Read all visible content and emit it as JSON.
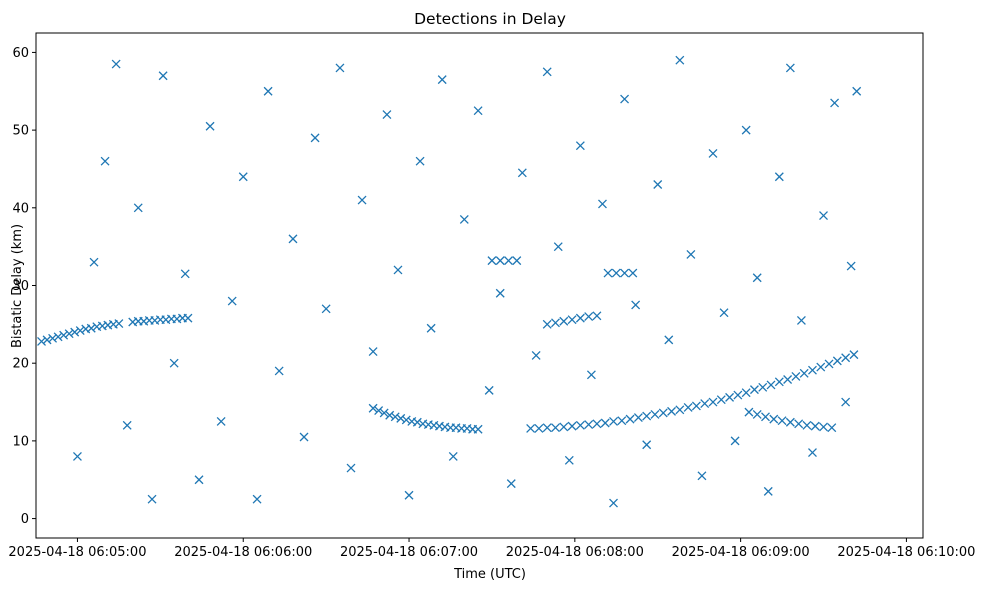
{
  "chart_data": {
    "type": "scatter",
    "title": "Detections in Delay",
    "xlabel": "Time (UTC)",
    "ylabel": "Bistatic Delay (km)",
    "x_axis_type": "datetime",
    "xlim": [
      "2025-04-18 06:04:45",
      "2025-04-18 06:10:06"
    ],
    "ylim": [
      -2.5,
      62.5
    ],
    "x_ticks": [
      "2025-04-18 06:05:00",
      "2025-04-18 06:06:00",
      "2025-04-18 06:07:00",
      "2025-04-18 06:08:00",
      "2025-04-18 06:09:00",
      "2025-04-18 06:10:00"
    ],
    "x_tick_labels": [
      "2025-04-18 06:05:00",
      "2025-04-18 06:06:00",
      "2025-04-18 06:07:00",
      "2025-04-18 06:08:00",
      "2025-04-18 06:09:00",
      "2025-04-18 06:10:00"
    ],
    "y_ticks": [
      0,
      10,
      20,
      30,
      40,
      50,
      60
    ],
    "y_tick_labels": [
      "0",
      "10",
      "20",
      "30",
      "40",
      "50",
      "60"
    ],
    "marker": "x",
    "color": "#1f77b4",
    "grid": false,
    "legend": "none",
    "series": [
      {
        "points": [
          [
            "2025-04-18 06:04:47",
            22.8
          ],
          [
            "2025-04-18 06:04:49",
            23.0
          ],
          [
            "2025-04-18 06:04:51",
            23.2
          ],
          [
            "2025-04-18 06:04:53",
            23.4
          ],
          [
            "2025-04-18 06:04:55",
            23.6
          ],
          [
            "2025-04-18 06:04:57",
            23.8
          ],
          [
            "2025-04-18 06:04:59",
            24.0
          ],
          [
            "2025-04-18 06:05:01",
            24.2
          ],
          [
            "2025-04-18 06:05:03",
            24.4
          ],
          [
            "2025-04-18 06:05:05",
            24.5
          ],
          [
            "2025-04-18 06:05:07",
            24.7
          ],
          [
            "2025-04-18 06:05:09",
            24.8
          ],
          [
            "2025-04-18 06:05:11",
            24.9
          ],
          [
            "2025-04-18 06:05:13",
            25.0
          ],
          [
            "2025-04-18 06:05:15",
            25.1
          ],
          [
            "2025-04-18 06:05:20",
            25.3
          ],
          [
            "2025-04-18 06:05:22",
            25.4
          ],
          [
            "2025-04-18 06:05:24",
            25.4
          ],
          [
            "2025-04-18 06:05:26",
            25.5
          ],
          [
            "2025-04-18 06:05:28",
            25.5
          ],
          [
            "2025-04-18 06:05:30",
            25.6
          ],
          [
            "2025-04-18 06:05:32",
            25.6
          ],
          [
            "2025-04-18 06:05:34",
            25.7
          ],
          [
            "2025-04-18 06:05:36",
            25.7
          ],
          [
            "2025-04-18 06:05:38",
            25.8
          ],
          [
            "2025-04-18 06:05:40",
            25.8
          ],
          [
            "2025-04-18 06:06:47",
            14.2
          ],
          [
            "2025-04-18 06:06:49",
            13.9
          ],
          [
            "2025-04-18 06:06:51",
            13.6
          ],
          [
            "2025-04-18 06:06:53",
            13.3
          ],
          [
            "2025-04-18 06:06:55",
            13.1
          ],
          [
            "2025-04-18 06:06:57",
            12.9
          ],
          [
            "2025-04-18 06:06:59",
            12.7
          ],
          [
            "2025-04-18 06:07:01",
            12.5
          ],
          [
            "2025-04-18 06:07:03",
            12.4
          ],
          [
            "2025-04-18 06:07:05",
            12.2
          ],
          [
            "2025-04-18 06:07:07",
            12.1
          ],
          [
            "2025-04-18 06:07:09",
            12.0
          ],
          [
            "2025-04-18 06:07:11",
            11.9
          ],
          [
            "2025-04-18 06:07:13",
            11.8
          ],
          [
            "2025-04-18 06:07:15",
            11.7
          ],
          [
            "2025-04-18 06:07:17",
            11.7
          ],
          [
            "2025-04-18 06:07:19",
            11.6
          ],
          [
            "2025-04-18 06:07:21",
            11.6
          ],
          [
            "2025-04-18 06:07:23",
            11.5
          ],
          [
            "2025-04-18 06:07:25",
            11.5
          ],
          [
            "2025-04-18 06:07:44",
            11.6
          ],
          [
            "2025-04-18 06:07:47",
            11.6
          ],
          [
            "2025-04-18 06:07:50",
            11.7
          ],
          [
            "2025-04-18 06:07:53",
            11.7
          ],
          [
            "2025-04-18 06:07:56",
            11.8
          ],
          [
            "2025-04-18 06:07:59",
            11.9
          ],
          [
            "2025-04-18 06:08:02",
            12.0
          ],
          [
            "2025-04-18 06:08:05",
            12.1
          ],
          [
            "2025-04-18 06:08:08",
            12.2
          ],
          [
            "2025-04-18 06:08:11",
            12.3
          ],
          [
            "2025-04-18 06:08:14",
            12.5
          ],
          [
            "2025-04-18 06:08:17",
            12.6
          ],
          [
            "2025-04-18 06:08:20",
            12.8
          ],
          [
            "2025-04-18 06:08:23",
            13.0
          ],
          [
            "2025-04-18 06:08:26",
            13.2
          ],
          [
            "2025-04-18 06:08:29",
            13.4
          ],
          [
            "2025-04-18 06:08:32",
            13.6
          ],
          [
            "2025-04-18 06:08:35",
            13.8
          ],
          [
            "2025-04-18 06:08:38",
            14.0
          ],
          [
            "2025-04-18 06:08:41",
            14.3
          ],
          [
            "2025-04-18 06:08:44",
            14.5
          ],
          [
            "2025-04-18 06:08:47",
            14.8
          ],
          [
            "2025-04-18 06:08:50",
            15.0
          ],
          [
            "2025-04-18 06:08:53",
            15.3
          ],
          [
            "2025-04-18 06:08:56",
            15.6
          ],
          [
            "2025-04-18 06:08:59",
            15.9
          ],
          [
            "2025-04-18 06:09:02",
            16.2
          ],
          [
            "2025-04-18 06:09:05",
            16.6
          ],
          [
            "2025-04-18 06:09:08",
            16.9
          ],
          [
            "2025-04-18 06:09:11",
            17.2
          ],
          [
            "2025-04-18 06:09:14",
            17.6
          ],
          [
            "2025-04-18 06:09:17",
            17.9
          ],
          [
            "2025-04-18 06:09:20",
            18.3
          ],
          [
            "2025-04-18 06:09:23",
            18.7
          ],
          [
            "2025-04-18 06:09:26",
            19.1
          ],
          [
            "2025-04-18 06:09:29",
            19.5
          ],
          [
            "2025-04-18 06:09:32",
            19.9
          ],
          [
            "2025-04-18 06:09:35",
            20.3
          ],
          [
            "2025-04-18 06:09:38",
            20.7
          ],
          [
            "2025-04-18 06:09:41",
            21.1
          ],
          [
            "2025-04-18 06:09:03",
            13.7
          ],
          [
            "2025-04-18 06:09:06",
            13.4
          ],
          [
            "2025-04-18 06:09:09",
            13.1
          ],
          [
            "2025-04-18 06:09:12",
            12.8
          ],
          [
            "2025-04-18 06:09:15",
            12.6
          ],
          [
            "2025-04-18 06:09:18",
            12.4
          ],
          [
            "2025-04-18 06:09:21",
            12.2
          ],
          [
            "2025-04-18 06:09:24",
            12.0
          ],
          [
            "2025-04-18 06:09:27",
            11.9
          ],
          [
            "2025-04-18 06:09:30",
            11.8
          ],
          [
            "2025-04-18 06:09:33",
            11.7
          ],
          [
            "2025-04-18 06:07:50",
            25.0
          ],
          [
            "2025-04-18 06:07:53",
            25.2
          ],
          [
            "2025-04-18 06:07:56",
            25.4
          ],
          [
            "2025-04-18 06:07:59",
            25.6
          ],
          [
            "2025-04-18 06:08:02",
            25.8
          ],
          [
            "2025-04-18 06:08:05",
            26.0
          ],
          [
            "2025-04-18 06:08:08",
            26.1
          ],
          [
            "2025-04-18 06:07:30",
            33.2
          ],
          [
            "2025-04-18 06:07:33",
            33.2
          ],
          [
            "2025-04-18 06:07:36",
            33.2
          ],
          [
            "2025-04-18 06:07:39",
            33.2
          ],
          [
            "2025-04-18 06:08:12",
            31.6
          ],
          [
            "2025-04-18 06:08:15",
            31.6
          ],
          [
            "2025-04-18 06:08:18",
            31.6
          ],
          [
            "2025-04-18 06:08:21",
            31.6
          ],
          [
            "2025-04-18 06:05:00",
            8.0
          ],
          [
            "2025-04-18 06:05:06",
            33.0
          ],
          [
            "2025-04-18 06:05:10",
            46.0
          ],
          [
            "2025-04-18 06:05:14",
            58.5
          ],
          [
            "2025-04-18 06:05:18",
            12.0
          ],
          [
            "2025-04-18 06:05:22",
            40.0
          ],
          [
            "2025-04-18 06:05:27",
            2.5
          ],
          [
            "2025-04-18 06:05:31",
            57.0
          ],
          [
            "2025-04-18 06:05:35",
            20.0
          ],
          [
            "2025-04-18 06:05:39",
            31.5
          ],
          [
            "2025-04-18 06:05:44",
            5.0
          ],
          [
            "2025-04-18 06:05:48",
            50.5
          ],
          [
            "2025-04-18 06:05:52",
            12.5
          ],
          [
            "2025-04-18 06:05:56",
            28.0
          ],
          [
            "2025-04-18 06:06:00",
            44.0
          ],
          [
            "2025-04-18 06:06:05",
            2.5
          ],
          [
            "2025-04-18 06:06:09",
            55.0
          ],
          [
            "2025-04-18 06:06:13",
            19.0
          ],
          [
            "2025-04-18 06:06:18",
            36.0
          ],
          [
            "2025-04-18 06:06:22",
            10.5
          ],
          [
            "2025-04-18 06:06:26",
            49.0
          ],
          [
            "2025-04-18 06:06:30",
            27.0
          ],
          [
            "2025-04-18 06:06:35",
            58.0
          ],
          [
            "2025-04-18 06:06:39",
            6.5
          ],
          [
            "2025-04-18 06:06:43",
            41.0
          ],
          [
            "2025-04-18 06:06:47",
            21.5
          ],
          [
            "2025-04-18 06:06:52",
            52.0
          ],
          [
            "2025-04-18 06:06:56",
            32.0
          ],
          [
            "2025-04-18 06:07:00",
            3.0
          ],
          [
            "2025-04-18 06:07:04",
            46.0
          ],
          [
            "2025-04-18 06:07:08",
            24.5
          ],
          [
            "2025-04-18 06:07:12",
            56.5
          ],
          [
            "2025-04-18 06:07:16",
            8.0
          ],
          [
            "2025-04-18 06:07:20",
            38.5
          ],
          [
            "2025-04-18 06:07:25",
            52.5
          ],
          [
            "2025-04-18 06:07:29",
            16.5
          ],
          [
            "2025-04-18 06:07:33",
            29.0
          ],
          [
            "2025-04-18 06:07:37",
            4.5
          ],
          [
            "2025-04-18 06:07:41",
            44.5
          ],
          [
            "2025-04-18 06:07:46",
            21.0
          ],
          [
            "2025-04-18 06:07:50",
            57.5
          ],
          [
            "2025-04-18 06:07:54",
            35.0
          ],
          [
            "2025-04-18 06:07:58",
            7.5
          ],
          [
            "2025-04-18 06:08:02",
            48.0
          ],
          [
            "2025-04-18 06:08:06",
            18.5
          ],
          [
            "2025-04-18 06:08:10",
            40.5
          ],
          [
            "2025-04-18 06:08:14",
            2.0
          ],
          [
            "2025-04-18 06:08:18",
            54.0
          ],
          [
            "2025-04-18 06:08:22",
            27.5
          ],
          [
            "2025-04-18 06:08:26",
            9.5
          ],
          [
            "2025-04-18 06:08:30",
            43.0
          ],
          [
            "2025-04-18 06:08:34",
            23.0
          ],
          [
            "2025-04-18 06:08:38",
            59.0
          ],
          [
            "2025-04-18 06:08:42",
            34.0
          ],
          [
            "2025-04-18 06:08:46",
            5.5
          ],
          [
            "2025-04-18 06:08:50",
            47.0
          ],
          [
            "2025-04-18 06:08:54",
            26.5
          ],
          [
            "2025-04-18 06:08:58",
            10.0
          ],
          [
            "2025-04-18 06:09:02",
            50.0
          ],
          [
            "2025-04-18 06:09:06",
            31.0
          ],
          [
            "2025-04-18 06:09:10",
            3.5
          ],
          [
            "2025-04-18 06:09:14",
            44.0
          ],
          [
            "2025-04-18 06:09:18",
            58.0
          ],
          [
            "2025-04-18 06:09:22",
            25.5
          ],
          [
            "2025-04-18 06:09:26",
            8.5
          ],
          [
            "2025-04-18 06:09:30",
            39.0
          ],
          [
            "2025-04-18 06:09:34",
            53.5
          ],
          [
            "2025-04-18 06:09:38",
            15.0
          ],
          [
            "2025-04-18 06:09:40",
            32.5
          ],
          [
            "2025-04-18 06:09:42",
            55.0
          ]
        ]
      }
    ]
  }
}
